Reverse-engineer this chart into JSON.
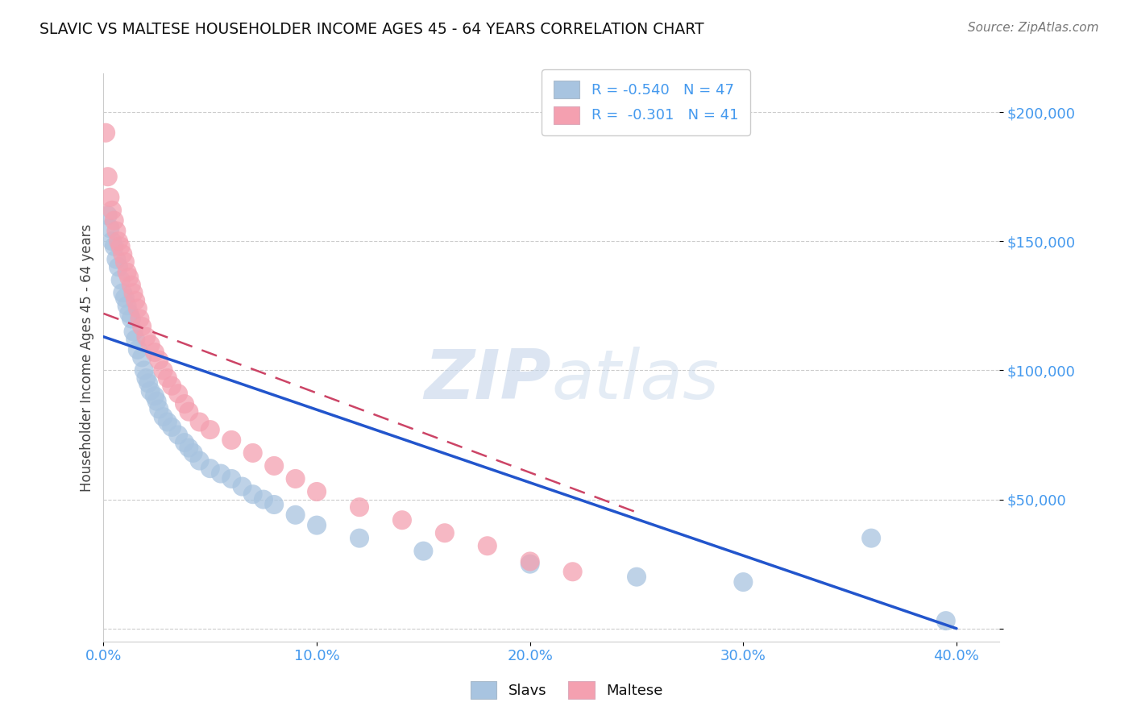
{
  "title": "SLAVIC VS MALTESE HOUSEHOLDER INCOME AGES 45 - 64 YEARS CORRELATION CHART",
  "source": "Source: ZipAtlas.com",
  "ylabel": "Householder Income Ages 45 - 64 years",
  "xlim": [
    0.0,
    0.42
  ],
  "ylim": [
    -5000,
    215000
  ],
  "yticks": [
    0,
    50000,
    100000,
    150000,
    200000
  ],
  "ytick_labels": [
    "",
    "$50,000",
    "$100,000",
    "$150,000",
    "$200,000"
  ],
  "xticks": [
    0.0,
    0.1,
    0.2,
    0.3,
    0.4
  ],
  "xtick_labels": [
    "0.0%",
    "10.0%",
    "20.0%",
    "30.0%",
    "40.0%"
  ],
  "slavs_R": -0.54,
  "slavs_N": 47,
  "maltese_R": -0.301,
  "maltese_N": 41,
  "slavs_color": "#a8c4e0",
  "maltese_color": "#f4a0b0",
  "slavs_line_color": "#2255cc",
  "maltese_line_color": "#cc4466",
  "background_color": "#ffffff",
  "watermark_zip": "ZIP",
  "watermark_atlas": "atlas",
  "slavs_x": [
    0.002,
    0.003,
    0.004,
    0.005,
    0.006,
    0.007,
    0.008,
    0.009,
    0.01,
    0.011,
    0.012,
    0.013,
    0.014,
    0.015,
    0.016,
    0.018,
    0.019,
    0.02,
    0.021,
    0.022,
    0.024,
    0.025,
    0.026,
    0.028,
    0.03,
    0.032,
    0.035,
    0.038,
    0.04,
    0.042,
    0.045,
    0.05,
    0.055,
    0.06,
    0.065,
    0.07,
    0.075,
    0.08,
    0.09,
    0.1,
    0.12,
    0.15,
    0.2,
    0.25,
    0.3,
    0.36,
    0.395
  ],
  "slavs_y": [
    160000,
    155000,
    150000,
    148000,
    143000,
    140000,
    135000,
    130000,
    128000,
    125000,
    122000,
    120000,
    115000,
    112000,
    108000,
    105000,
    100000,
    97000,
    95000,
    92000,
    90000,
    88000,
    85000,
    82000,
    80000,
    78000,
    75000,
    72000,
    70000,
    68000,
    65000,
    62000,
    60000,
    58000,
    55000,
    52000,
    50000,
    48000,
    44000,
    40000,
    35000,
    30000,
    25000,
    20000,
    18000,
    35000,
    3000
  ],
  "maltese_x": [
    0.001,
    0.002,
    0.003,
    0.004,
    0.005,
    0.006,
    0.007,
    0.008,
    0.009,
    0.01,
    0.011,
    0.012,
    0.013,
    0.014,
    0.015,
    0.016,
    0.017,
    0.018,
    0.02,
    0.022,
    0.024,
    0.026,
    0.028,
    0.03,
    0.032,
    0.035,
    0.038,
    0.04,
    0.045,
    0.05,
    0.06,
    0.07,
    0.08,
    0.09,
    0.1,
    0.12,
    0.14,
    0.16,
    0.18,
    0.2,
    0.22
  ],
  "maltese_y": [
    192000,
    175000,
    167000,
    162000,
    158000,
    154000,
    150000,
    148000,
    145000,
    142000,
    138000,
    136000,
    133000,
    130000,
    127000,
    124000,
    120000,
    117000,
    113000,
    110000,
    107000,
    104000,
    100000,
    97000,
    94000,
    91000,
    87000,
    84000,
    80000,
    77000,
    73000,
    68000,
    63000,
    58000,
    53000,
    47000,
    42000,
    37000,
    32000,
    26000,
    22000
  ],
  "slavs_line_x": [
    0.0,
    0.4
  ],
  "slavs_line_y": [
    113000,
    0
  ],
  "maltese_line_x": [
    0.0,
    0.25
  ],
  "maltese_line_y": [
    122000,
    45000
  ]
}
